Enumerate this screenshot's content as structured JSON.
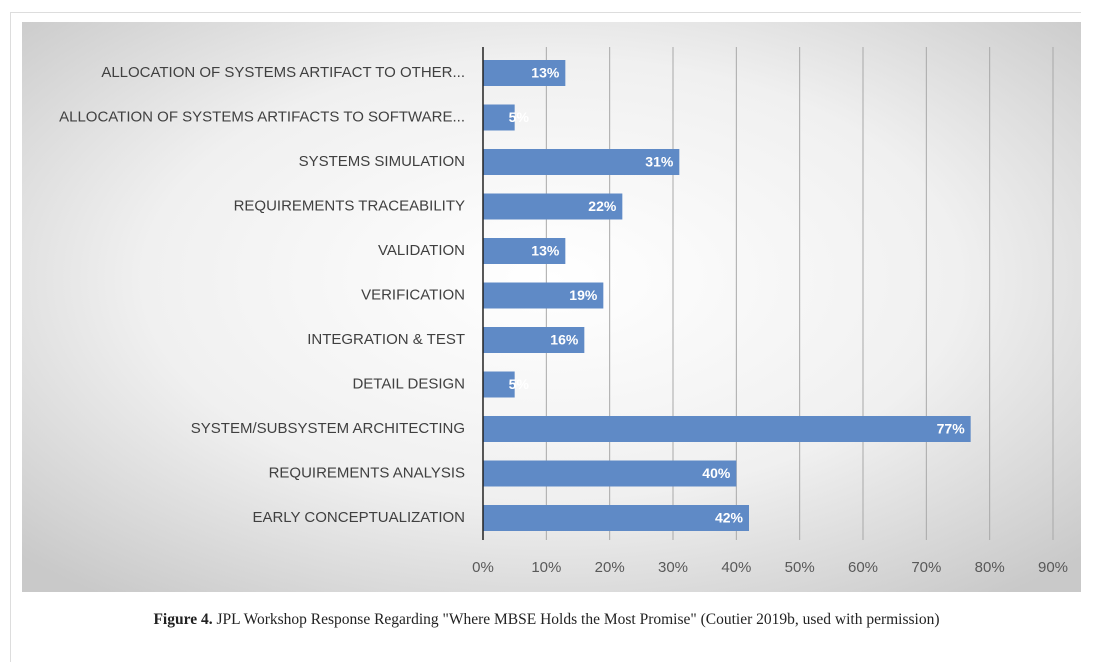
{
  "chart_data": {
    "type": "bar",
    "orientation": "horizontal",
    "categories": [
      "ALLOCATION OF SYSTEMS ARTIFACT TO OTHER...",
      "ALLOCATION OF SYSTEMS ARTIFACTS TO SOFTWARE...",
      "SYSTEMS SIMULATION",
      "REQUIREMENTS TRACEABILITY",
      "VALIDATION",
      "VERIFICATION",
      "INTEGRATION & TEST",
      "DETAIL DESIGN",
      "SYSTEM/SUBSYSTEM ARCHITECTING",
      "REQUIREMENTS ANALYSIS",
      "EARLY CONCEPTUALIZATION"
    ],
    "values": [
      13,
      5,
      31,
      22,
      13,
      19,
      16,
      5,
      77,
      40,
      42
    ],
    "value_labels": [
      "13%",
      "5%",
      "31%",
      "22%",
      "13%",
      "19%",
      "16%",
      "5%",
      "77%",
      "40%",
      "42%"
    ],
    "color": "#5f8ac6",
    "xlim": [
      0,
      90
    ],
    "xticks": [
      {
        "value": 0,
        "label": "0%"
      },
      {
        "value": 10,
        "label": "10%"
      },
      {
        "value": 20,
        "label": "20%"
      },
      {
        "value": 30,
        "label": "30%"
      },
      {
        "value": 40,
        "label": "40%"
      },
      {
        "value": 50,
        "label": "50%"
      },
      {
        "value": 60,
        "label": "60%"
      },
      {
        "value": 70,
        "label": "70%"
      },
      {
        "value": 80,
        "label": "80%"
      },
      {
        "value": 90,
        "label": "90%"
      }
    ],
    "grid": true
  },
  "caption": {
    "label": "Figure 4.",
    "text": "JPL Workshop Response Regarding \"Where MBSE Holds the Most Promise\" (Coutier 2019b, used with permission)"
  }
}
